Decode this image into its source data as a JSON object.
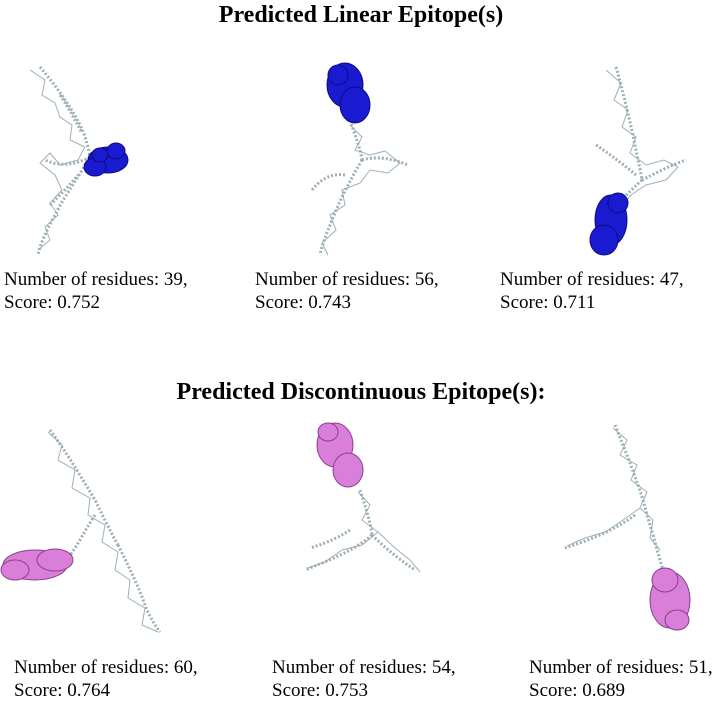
{
  "linear": {
    "title": "Predicted Linear Epitope(s)",
    "items": [
      {
        "residues_line": "Number of residues: 39,",
        "score_line": "Score: 0.752"
      },
      {
        "residues_line": "Number of residues: 56,",
        "score_line": "Score: 0.743"
      },
      {
        "residues_line": "Number of residues: 47,",
        "score_line": "Score: 0.711"
      }
    ]
  },
  "discontinuous": {
    "title": "Predicted Discontinuous Epitope(s):",
    "items": [
      {
        "residues_line": "Number of residues: 60,",
        "score_line": "Score: 0.764"
      },
      {
        "residues_line": "Number of residues: 54,",
        "score_line": "Score: 0.753"
      },
      {
        "residues_line": "Number of residues: 51,",
        "score_line": "Score: 0.689"
      }
    ]
  },
  "colors": {
    "protein": "#93a7af",
    "linear_epitope": "#1a1ad0",
    "discontinuous_epitope": "#d97fd9"
  }
}
